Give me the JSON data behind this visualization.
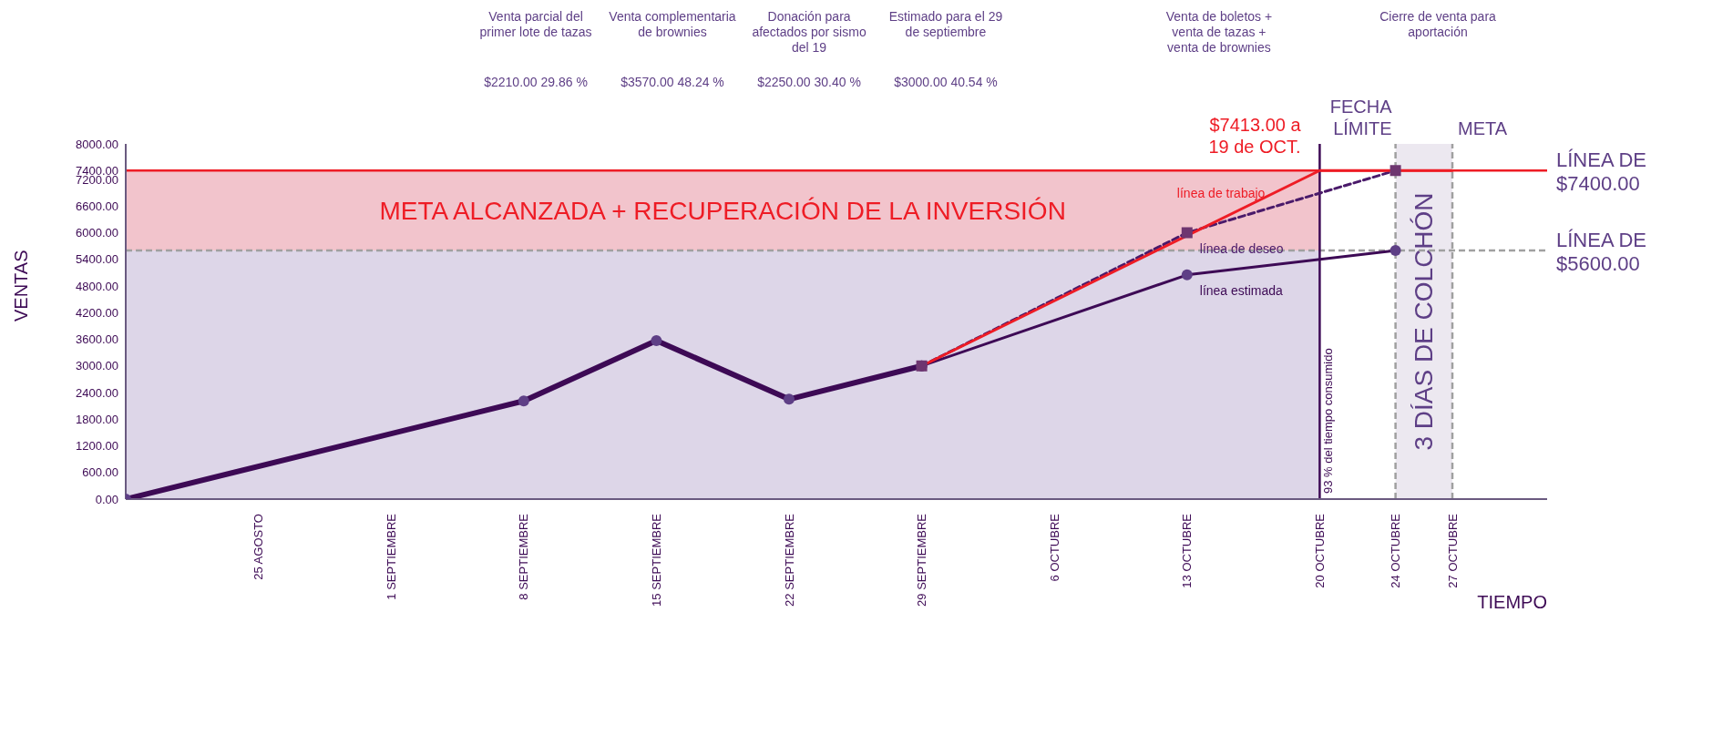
{
  "chart_data": {
    "type": "line",
    "xlabel": "TIEMPO",
    "ylabel": "VENTAS",
    "xlim": [
      "--08-18",
      "--11-01"
    ],
    "xticks": [
      {
        "value": "--08-25",
        "label": "25 AGOSTO"
      },
      {
        "value": "--09-01",
        "label": "1 SEPTIEMBRE"
      },
      {
        "value": "--09-08",
        "label": "8 SEPTIEMBRE"
      },
      {
        "value": "--09-15",
        "label": "15 SEPTIEMBRE"
      },
      {
        "value": "--09-22",
        "label": "22 SEPTIEMBRE"
      },
      {
        "value": "--09-29",
        "label": "29 SEPTIEMBRE"
      },
      {
        "value": "--10-06",
        "label": "6  OCTUBRE"
      },
      {
        "value": "--10-13",
        "label": "13  OCTUBRE"
      },
      {
        "value": "--10-20",
        "label": "20  OCTUBRE"
      },
      {
        "value": "--10-24",
        "label": "24  OCTUBRE"
      },
      {
        "value": "--10-27",
        "label": "27  OCTUBRE"
      }
    ],
    "ylim": [
      0,
      8000
    ],
    "yticks": [
      {
        "value": 0,
        "label": "0.00"
      },
      {
        "value": 600,
        "label": "600.00"
      },
      {
        "value": 1200,
        "label": "1200.00"
      },
      {
        "value": 1800,
        "label": "1800.00"
      },
      {
        "value": 2400,
        "label": "2400.00"
      },
      {
        "value": 3000,
        "label": "3000.00"
      },
      {
        "value": 3600,
        "label": "3600.00"
      },
      {
        "value": 4200,
        "label": "4200.00"
      },
      {
        "value": 4800,
        "label": "4800.00"
      },
      {
        "value": 5400,
        "label": "5400.00"
      },
      {
        "value": 6000,
        "label": "6000.00"
      },
      {
        "value": 6600,
        "label": "6600.00"
      },
      {
        "value": 7200,
        "label": "7200.00"
      },
      {
        "value": 7400,
        "label": "7400.00"
      },
      {
        "value": 8000,
        "label": "8000.00"
      }
    ],
    "grid": false,
    "series": [
      {
        "color": "#3d0a55",
        "marker": "circle",
        "line_style": "solid",
        "x": [
          "--08-18",
          "--09-08",
          "--09-15",
          "--09-22",
          "--09-29"
        ],
        "values": [
          0,
          2210,
          3570,
          2250,
          3000
        ]
      },
      {
        "name": "línea estimada",
        "color": "#3d0a55",
        "marker": "circle",
        "line_style": "solid",
        "x": [
          "--09-29",
          "--10-13",
          "--10-24"
        ],
        "values": [
          3000,
          5050,
          5600
        ]
      },
      {
        "name": "línea de deseo",
        "color": "#4a1a6a",
        "marker": "square",
        "line_style": "dashed",
        "x": [
          "--09-29",
          "--10-13",
          "--10-24"
        ],
        "values": [
          3000,
          6000,
          7400
        ]
      },
      {
        "name": "línea de trabajo",
        "color": "#ee1c25",
        "marker": "none",
        "line_style": "solid",
        "x": [
          "--09-29",
          "--10-20",
          "--10-27"
        ],
        "values": [
          3000,
          7400,
          7400
        ]
      }
    ],
    "ref_lines": [
      {
        "axis": "y",
        "value": 7400,
        "label": "LÍNEA DE $7400.00",
        "color": "#ee1c25",
        "line_style": "solid"
      },
      {
        "axis": "y",
        "value": 5600,
        "label": "LÍNEA DE $5600.00",
        "color": "#a0a0a0",
        "line_style": "dashed"
      },
      {
        "axis": "x",
        "value": "--10-20",
        "label": "93 % del tiempo consumido",
        "color": "#3d0a55",
        "line_style": "solid"
      },
      {
        "axis": "x",
        "value": "--10-24",
        "label": "FECHA LÍMITE",
        "color": "#a0a0a0",
        "line_style": "dashed"
      },
      {
        "axis": "x",
        "value": "--10-27",
        "label": "META",
        "color": "#a0a0a0",
        "line_style": "dashed"
      }
    ],
    "bands": [
      {
        "axis": "y",
        "from": 5600,
        "to": 7400,
        "label": "META ALCANZADA + RECUPERACIÓN DE LA INVERSIÓN",
        "color": "#f2c4cc"
      },
      {
        "axis": "y",
        "from": 0,
        "to": 5600,
        "color": "#ddd6e8"
      },
      {
        "axis": "x",
        "from": "--10-24",
        "to": "--10-27",
        "label": "3 DÍAS DE COLCHÓN",
        "color": "#ece8f0"
      }
    ],
    "annotations": [
      "Venta parcial del primer lote de tazas",
      "$2210.00 29.86 %",
      "Venta complementaria de brownies",
      "$3570.00 48.24 %",
      "Donación para afectados por sismo del 19",
      "$2250.00 30.40 %",
      "Estimado para el 29 de septiembre",
      "$3000.00 40.54 %",
      "Venta de boletos + venta de tazas + venta de brownies",
      "Cierre de venta para aportación",
      {
        "text": "$7413.00 a\n19 de OCT.",
        "x": "--10-19",
        "y": 7413
      }
    ]
  }
}
